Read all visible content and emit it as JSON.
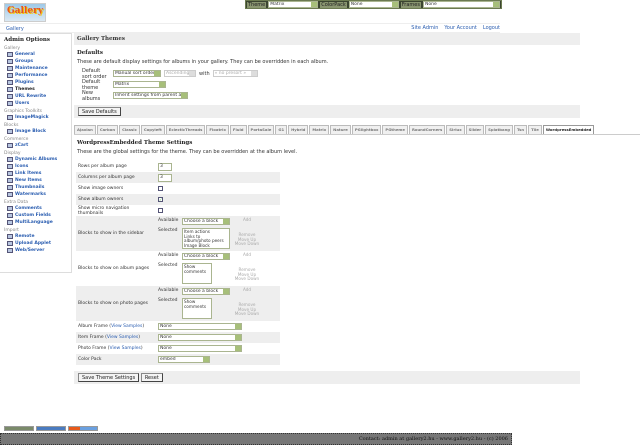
{
  "topbar": {
    "theme_label": "Theme",
    "theme_value": "Matrix",
    "colorpack_label": "ColorPack",
    "colorpack_value": "None",
    "frames_label": "Frames",
    "frames_value": "None"
  },
  "logo_text": "Gallery",
  "breadcrumb": "Gallery",
  "user_links": [
    "Site Admin",
    "Your Account",
    "Logout"
  ],
  "sidebar": {
    "title": "Admin Options",
    "groups": [
      {
        "name": "Gallery",
        "items": [
          "General",
          "Groups",
          "Maintenance",
          "Performance",
          "Plugins",
          "Themes",
          "URL Rewrite",
          "Users"
        ]
      },
      {
        "name": "Graphics Toolkits",
        "items": [
          "ImageMagick"
        ]
      },
      {
        "name": "Blocks",
        "items": [
          "Image Block"
        ]
      },
      {
        "name": "Commerce",
        "items": [
          "zCart"
        ]
      },
      {
        "name": "Display",
        "items": [
          "Dynamic Albums",
          "Icons",
          "Link Items",
          "New Items",
          "Thumbnails",
          "Watermarks"
        ]
      },
      {
        "name": "Extra Data",
        "items": [
          "Comments",
          "Custom Fields",
          "MultiLanguage"
        ]
      },
      {
        "name": "Import",
        "items": [
          "Remote",
          "Upload Applet",
          "Web/Server"
        ]
      }
    ],
    "current": "Themes"
  },
  "main": {
    "title": "Gallery Themes",
    "defaults_heading": "Defaults",
    "defaults_desc": "These are default display settings for albums in your gallery. They can be overridden in each album.",
    "sort_label": "Default sort order",
    "sort_value": "Manual sort order",
    "sort_dir": "Ascending",
    "with_label": "with",
    "with_value": "« no presort »",
    "theme_label": "Default theme",
    "theme_value": "Matrix",
    "new_albums_label": "New albums",
    "new_albums_value": "Inherit settings from parent album",
    "save_defaults": "Save Defaults"
  },
  "tabs": [
    "Ajaxian",
    "Carbon",
    "Classic",
    "Copyleft",
    "EclecticThreads",
    "Floatrix",
    "Fluid",
    "PortaSale",
    "G1",
    "Hybrid",
    "Matrix",
    "Nature",
    "PGlightbox",
    "PGtheme",
    "RoundCorners",
    "Siriux",
    "Slider",
    "Splatbang",
    "Tsn",
    "Tile",
    "WordpressEmbedded"
  ],
  "active_tab": "WordpressEmbedded",
  "theme": {
    "heading": "WordpressEmbedded Theme Settings",
    "desc": "These are the global settings for the theme. They can be overridden at the album level.",
    "rows_label": "Rows per album page",
    "rows_value": "3",
    "cols_label": "Columns per album page",
    "cols_value": "3",
    "img_owners": "Show image owners",
    "img_owners_checked": false,
    "album_owners": "Show album owners",
    "album_owners_checked": true,
    "micro_nav": "Show micro navigation thumbnails",
    "micro_nav_checked": false,
    "available": "Available",
    "selected": "Selected",
    "choose": "Choose a block",
    "add": "Add",
    "remove": "Remove",
    "move_up": "Move Up",
    "move_down": "Move Down",
    "sidebar_blocks_label": "Blocks to show in the sidebar",
    "sidebar_blocks": [
      "Item actions",
      "Links to album/photo peers",
      "Image Block"
    ],
    "album_blocks_label": "Blocks to show on album pages",
    "album_blocks": [
      "Show comments"
    ],
    "photo_blocks_label": "Blocks to show on photo pages",
    "photo_blocks": [
      "Show comments"
    ],
    "view_samples": "View Samples",
    "album_frame_label": "Album Frame",
    "album_frame": "None",
    "item_frame_label": "Item Frame",
    "item_frame": "None",
    "photo_frame_label": "Photo Frame",
    "photo_frame": "None",
    "color_pack_label": "Color Pack",
    "color_pack": "embed",
    "save": "Save Theme Settings",
    "reset": "Reset"
  },
  "footer": "Contact: admin at gallery2.hu - www.gallery2.hu - (c) 2006"
}
